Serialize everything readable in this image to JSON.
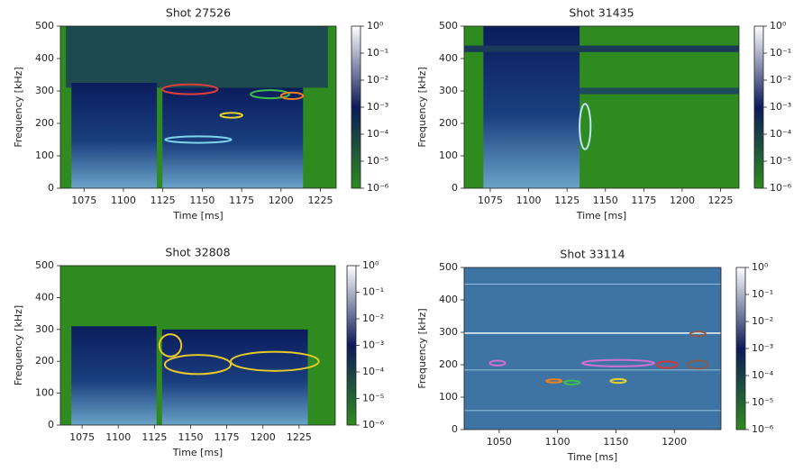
{
  "chart_data": [
    {
      "type": "spectrogram",
      "title": "Shot 27526",
      "xlabel": "Time [ms]",
      "ylabel": "Frequency [kHz]",
      "xlim": [
        1060,
        1235
      ],
      "xticks": [
        1075,
        1100,
        1125,
        1150,
        1175,
        1200,
        1225
      ],
      "ylim": [
        0,
        500
      ],
      "yticks": [
        0,
        100,
        200,
        300,
        400,
        500
      ],
      "colorbar": {
        "scale": "log",
        "clim": [
          1e-06,
          1
        ],
        "colormap": [
          "#2f8a1f",
          "#0c1b5a",
          "#ffffff"
        ],
        "ticks": [
          {
            "value": 1,
            "label": "10⁰"
          },
          {
            "value": 0.1,
            "label": "10⁻¹"
          },
          {
            "value": 0.01,
            "label": "10⁻²"
          },
          {
            "value": 0.001,
            "label": "10⁻³"
          },
          {
            "value": 0.0001,
            "label": "10⁻⁴"
          },
          {
            "value": 1e-05,
            "label": "10⁻⁵"
          },
          {
            "value": 1e-06,
            "label": "10⁻⁶"
          }
        ]
      }
    },
    {
      "type": "spectrogram",
      "title": "Shot 31435",
      "xlabel": "Time [ms]",
      "ylabel": "Frequency [kHz]",
      "xlim": [
        1058,
        1237
      ],
      "xticks": [
        1075,
        1100,
        1125,
        1150,
        1175,
        1200,
        1225
      ],
      "ylim": [
        0,
        500
      ],
      "yticks": [
        0,
        100,
        200,
        300,
        400,
        500
      ],
      "colorbar": {
        "scale": "log",
        "clim": [
          1e-06,
          1
        ],
        "colormap": [
          "#2f8a1f",
          "#0c1b5a",
          "#ffffff"
        ],
        "ticks": [
          {
            "value": 1,
            "label": "10⁰"
          },
          {
            "value": 0.1,
            "label": "10⁻¹"
          },
          {
            "value": 0.01,
            "label": "10⁻²"
          },
          {
            "value": 0.001,
            "label": "10⁻³"
          },
          {
            "value": 0.0001,
            "label": "10⁻⁴"
          },
          {
            "value": 1e-05,
            "label": "10⁻⁵"
          },
          {
            "value": 1e-06,
            "label": "10⁻⁶"
          }
        ]
      }
    },
    {
      "type": "spectrogram",
      "title": "Shot 32808",
      "xlabel": "Time [ms]",
      "ylabel": "Frequency [kHz]",
      "xlim": [
        1060,
        1250
      ],
      "xticks": [
        1075,
        1100,
        1125,
        1150,
        1175,
        1200,
        1225
      ],
      "ylim": [
        0,
        500
      ],
      "yticks": [
        0,
        100,
        200,
        300,
        400,
        500
      ],
      "colorbar": {
        "scale": "log",
        "clim": [
          1e-06,
          1
        ],
        "colormap": [
          "#2f8a1f",
          "#0c1b5a",
          "#ffffff"
        ],
        "ticks": [
          {
            "value": 1,
            "label": "10⁰"
          },
          {
            "value": 0.1,
            "label": "10⁻¹"
          },
          {
            "value": 0.01,
            "label": "10⁻²"
          },
          {
            "value": 0.001,
            "label": "10⁻³"
          },
          {
            "value": 0.0001,
            "label": "10⁻⁴"
          },
          {
            "value": 1e-05,
            "label": "10⁻⁵"
          },
          {
            "value": 1e-06,
            "label": "10⁻⁶"
          }
        ]
      }
    },
    {
      "type": "spectrogram",
      "title": "Shot 33114",
      "xlabel": "Time [ms]",
      "ylabel": "Frequency [kHz]",
      "xlim": [
        1020,
        1240
      ],
      "xticks": [
        1050,
        1100,
        1150,
        1200
      ],
      "ylim": [
        0,
        500
      ],
      "yticks": [
        0,
        100,
        200,
        300,
        400,
        500
      ],
      "colorbar": {
        "scale": "log",
        "clim": [
          1e-06,
          1
        ],
        "colormap": [
          "#2f8a1f",
          "#0c1b5a",
          "#ffffff"
        ],
        "ticks": [
          {
            "value": 1,
            "label": "10⁰"
          },
          {
            "value": 0.1,
            "label": "10⁻¹"
          },
          {
            "value": 0.01,
            "label": "10⁻²"
          },
          {
            "value": 0.001,
            "label": "10⁻³"
          },
          {
            "value": 0.0001,
            "label": "10⁻⁴"
          },
          {
            "value": 1e-05,
            "label": "10⁻⁵"
          },
          {
            "value": 1e-06,
            "label": "10⁻⁶"
          }
        ]
      }
    }
  ]
}
